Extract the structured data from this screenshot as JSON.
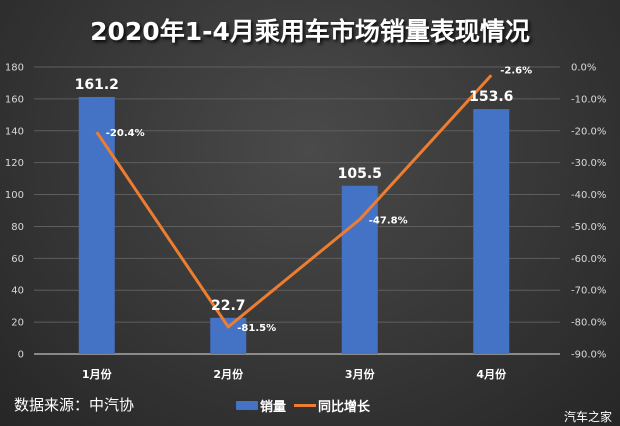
{
  "title": "2020年1-4月乘用车市场销量表现情况",
  "source": "数据来源：中汽协",
  "watermark": "汽车之家",
  "legend": [
    {
      "label": "销量",
      "type": "bar",
      "color": "#4472c4"
    },
    {
      "label": "同比增长",
      "type": "line",
      "color": "#ed7d31"
    }
  ],
  "axes": {
    "left_ticks": [
      "0",
      "20",
      "40",
      "60",
      "80",
      "100",
      "120",
      "140",
      "160",
      "180"
    ],
    "right_ticks": [
      "-90.0%",
      "-80.0%",
      "-70.0%",
      "-60.0%",
      "-50.0%",
      "-40.0%",
      "-30.0%",
      "-20.0%",
      "-10.0%",
      "0.0%"
    ]
  },
  "chart_data": {
    "type": "bar+line",
    "title": "2020年1-4月乘用车市场销量表现情况",
    "categories": [
      "1月份",
      "2月份",
      "3月份",
      "4月份"
    ],
    "series": [
      {
        "name": "销量",
        "type": "bar",
        "axis": "left",
        "values": [
          161.2,
          22.7,
          105.5,
          153.6
        ],
        "labels": [
          "161.2",
          "22.7",
          "105.5",
          "153.6"
        ],
        "color": "#4472c4"
      },
      {
        "name": "同比增长",
        "type": "line",
        "axis": "right",
        "values": [
          -20.4,
          -81.5,
          -47.8,
          -2.6
        ],
        "labels": [
          "-20.4%",
          "-81.5%",
          "-47.8%",
          "-2.6%"
        ],
        "color": "#ed7d31"
      }
    ],
    "ylim_left": [
      0,
      180
    ],
    "ylim_right": [
      -90,
      0
    ],
    "grid": true,
    "legend_position": "bottom",
    "annotation": "数据来源：中汽协"
  }
}
